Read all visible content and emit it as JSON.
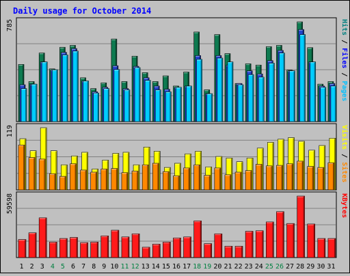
{
  "chart_data": {
    "title": "Daily usage for October 2014",
    "categories": [
      "1",
      "2",
      "3",
      "4",
      "5",
      "6",
      "7",
      "8",
      "9",
      "10",
      "11",
      "12",
      "13",
      "14",
      "15",
      "16",
      "17",
      "18",
      "19",
      "20",
      "21",
      "22",
      "23",
      "24",
      "25",
      "26",
      "27",
      "28",
      "29",
      "30",
      "31"
    ],
    "weekend_days": [
      "4",
      "5",
      "11",
      "12",
      "18",
      "19",
      "25",
      "26"
    ],
    "panels": [
      {
        "type": "bar",
        "max_label": "785",
        "ylim": [
          0,
          785
        ],
        "right_labels": [
          {
            "text": "Pages",
            "color": "#00c0ff"
          },
          {
            "text": " / ",
            "color": "#000000"
          },
          {
            "text": "Files",
            "color": "#0000ff"
          },
          {
            "text": " / ",
            "color": "#000000"
          },
          {
            "text": "Hits",
            "color": "#008080"
          }
        ],
        "series": [
          {
            "name": "Hits",
            "color": "#0e7a50",
            "values": [
              450,
              315,
              540,
              415,
              585,
              600,
              345,
              260,
              305,
              650,
              315,
              515,
              385,
              315,
              360,
              280,
              390,
              705,
              250,
              685,
              535,
              300,
              455,
              445,
              590,
              600,
              405,
              785,
              582,
              295,
              315
            ]
          },
          {
            "name": "Files",
            "color": "#2244cc",
            "values": [
              290,
              295,
              470,
              408,
              545,
              575,
              320,
              235,
              270,
              440,
              260,
              435,
              345,
              280,
              255,
              270,
              280,
              520,
              220,
              520,
              445,
              300,
              400,
              375,
              480,
              560,
              400,
              725,
              470,
              280,
              300
            ]
          },
          {
            "name": "Pages",
            "color": "#00ccff",
            "values": [
              260,
              295,
              470,
              408,
              525,
              555,
              320,
              225,
              260,
              410,
              250,
              425,
              325,
              250,
              235,
              270,
              280,
              490,
              220,
              500,
              470,
              290,
              370,
              350,
              460,
              540,
              400,
              685,
              470,
              270,
              280
            ]
          }
        ]
      },
      {
        "type": "bar",
        "max_label": "119",
        "ylim": [
          0,
          119
        ],
        "right_labels": [
          {
            "text": "Sites",
            "color": "#ff8800"
          },
          {
            "text": " / ",
            "color": "#000000"
          },
          {
            "text": "Visits",
            "color": "#ffff00"
          }
        ],
        "series": [
          {
            "name": "Visits",
            "color": "#ffff00",
            "values": [
              98,
              75,
              119,
              75,
              48,
              65,
              72,
              40,
              57,
              70,
              72,
              48,
              82,
              74,
              43,
              51,
              69,
              74,
              44,
              64,
              61,
              54,
              61,
              80,
              91,
              97,
              100,
              93,
              76,
              85,
              99
            ]
          },
          {
            "name": "Sites",
            "color": "#ff8800",
            "values": [
              86,
              62,
              59,
              31,
              26,
              50,
              38,
              34,
              40,
              41,
              33,
              36,
              48,
              51,
              35,
              27,
              42,
              48,
              28,
              42,
              29,
              34,
              37,
              49,
              46,
              47,
              50,
              55,
              45,
              43,
              52
            ]
          }
        ]
      },
      {
        "type": "bar",
        "max_label": "59598",
        "ylim": [
          0,
          59598
        ],
        "right_labels": [
          {
            "text": "KBytes",
            "color": "#ff0000"
          }
        ],
        "series": [
          {
            "name": "KBytes",
            "color": "#ff1a1a",
            "values": [
              17500,
              24000,
              38500,
              15000,
              18500,
              19500,
              14500,
              15000,
              21000,
              26500,
              20000,
              23000,
              10000,
              13000,
              15000,
              19000,
              20000,
              35500,
              13500,
              23000,
              11000,
              11000,
              25500,
              26000,
              34500,
              44500,
              33000,
              59598,
              32500,
              18500,
              18500
            ]
          }
        ]
      }
    ]
  }
}
